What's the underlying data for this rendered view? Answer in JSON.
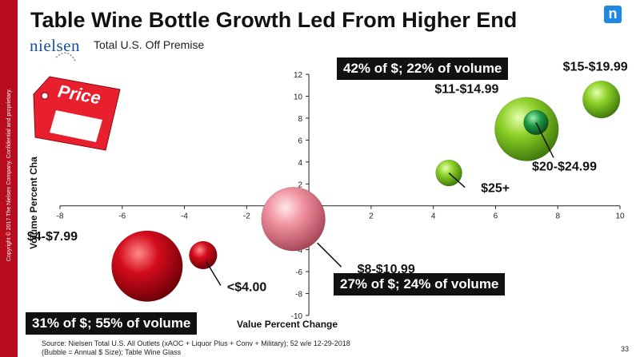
{
  "title": "Table Wine Bottle Growth Led From Higher End",
  "brand": "nielsen",
  "subtitle": "Total U.S. Off Premise",
  "side_text": "Copyright © 2017 The Nielsen Company. Confidential and proprietary.",
  "price_tag_text": "Price",
  "footer": {
    "line1": "Source:  Nielsen Total U.S. All Outlets (xAOC + Liquor Plus + Conv + Military); 52 w/e  12-29-2018",
    "line2": "(Bubble = Annual $ Size); Table Wine Glass"
  },
  "page_number": "33",
  "callouts": {
    "top": "42% of $; 22% of volume",
    "middle": "27% of $; 24% of volume",
    "bottom": "31% of $; 55% of volume"
  },
  "colors": {
    "brand_red": "#b80d1e",
    "green": "#7ed321",
    "dark_green": "#1a8a3a",
    "pink": "#f08a94",
    "red": "#d0021b",
    "nielsen_blue": "#1e88e5"
  },
  "chart_data": {
    "type": "scatter",
    "subtype": "bubble",
    "xlabel": "Value Percent Change",
    "ylabel": "Volume Percent Cha",
    "xlim": [
      -8,
      10
    ],
    "ylim": [
      -10,
      12
    ],
    "xticks": [
      "-8",
      "-6",
      "-4",
      "-2",
      "0",
      "2",
      "4",
      "6",
      "8",
      "10"
    ],
    "yticks": [
      "12",
      "10",
      "8",
      "6",
      "4",
      "2",
      "0",
      "-2",
      "-4",
      "-6",
      "-8",
      "-10"
    ],
    "grid": false,
    "points": [
      {
        "label": "$15-$19.99",
        "x": 9.4,
        "y": 9.7,
        "size": 1.6,
        "color": "green"
      },
      {
        "label": "$11-$14.99",
        "x": 7.0,
        "y": 7.0,
        "size": 3.8,
        "color": "green"
      },
      {
        "label": "$20-$24.99",
        "x": 7.3,
        "y": 7.6,
        "size": 0.7,
        "color": "dark_green"
      },
      {
        "label": "$25+",
        "x": 4.5,
        "y": 3.0,
        "size": 0.8,
        "color": "green"
      },
      {
        "label": "$8-$10.99",
        "x": -0.5,
        "y": -1.2,
        "size": 3.8,
        "color": "pink"
      },
      {
        "label": "$4-$7.99",
        "x": -5.2,
        "y": -5.5,
        "size": 4.7,
        "color": "red"
      },
      {
        "label": "<$4.00",
        "x": -3.4,
        "y": -4.5,
        "size": 0.9,
        "color": "red"
      }
    ]
  }
}
